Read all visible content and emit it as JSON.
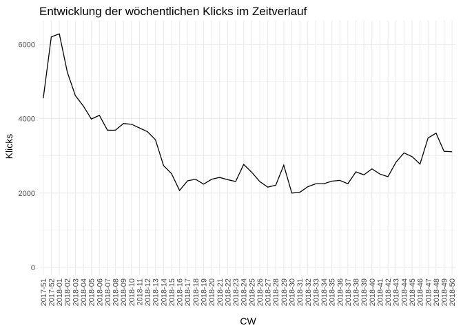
{
  "chart_data": {
    "type": "line",
    "title": "Entwicklung der wöchentlichen Klicks im Zeitverlauf",
    "xlabel": "CW",
    "ylabel": "Klicks",
    "ylim": [
      0,
      6300
    ],
    "y_ticks": [
      0,
      2000,
      4000,
      6000
    ],
    "grid": true,
    "colors": {
      "line": "#000000",
      "grid": "#ebebeb",
      "background": "#ffffff"
    },
    "categories": [
      "2017-51",
      "2017-52",
      "2018-01",
      "2018-02",
      "2018-03",
      "2018-04",
      "2018-05",
      "2018-06",
      "2018-07",
      "2018-08",
      "2018-09",
      "2018-10",
      "2018-11",
      "2018-12",
      "2018-13",
      "2018-14",
      "2018-15",
      "2018-16",
      "2018-17",
      "2018-18",
      "2018-19",
      "2018-20",
      "2018-21",
      "2018-22",
      "2018-23",
      "2018-24",
      "2018-25",
      "2018-26",
      "2018-27",
      "2018-28",
      "2018-29",
      "2018-30",
      "2018-31",
      "2018-32",
      "2018-33",
      "2018-34",
      "2018-35",
      "2018-36",
      "2018-37",
      "2018-38",
      "2018-39",
      "2018-40",
      "2018-41",
      "2018-42",
      "2018-43",
      "2018-44",
      "2018-45",
      "2018-46",
      "2018-47",
      "2018-48",
      "2018-49",
      "2018-50"
    ],
    "series": [
      {
        "values": [
          4550,
          6200,
          6280,
          5250,
          4620,
          4340,
          3990,
          4090,
          3690,
          3690,
          3870,
          3850,
          3750,
          3650,
          3430,
          2740,
          2520,
          2070,
          2330,
          2370,
          2240,
          2370,
          2420,
          2360,
          2310,
          2770,
          2560,
          2310,
          2160,
          2210,
          2750,
          2000,
          2020,
          2170,
          2250,
          2250,
          2320,
          2340,
          2250,
          2570,
          2490,
          2650,
          2510,
          2440,
          2830,
          3080,
          2980,
          2780,
          3480,
          3610,
          3120,
          3110
        ]
      }
    ]
  }
}
